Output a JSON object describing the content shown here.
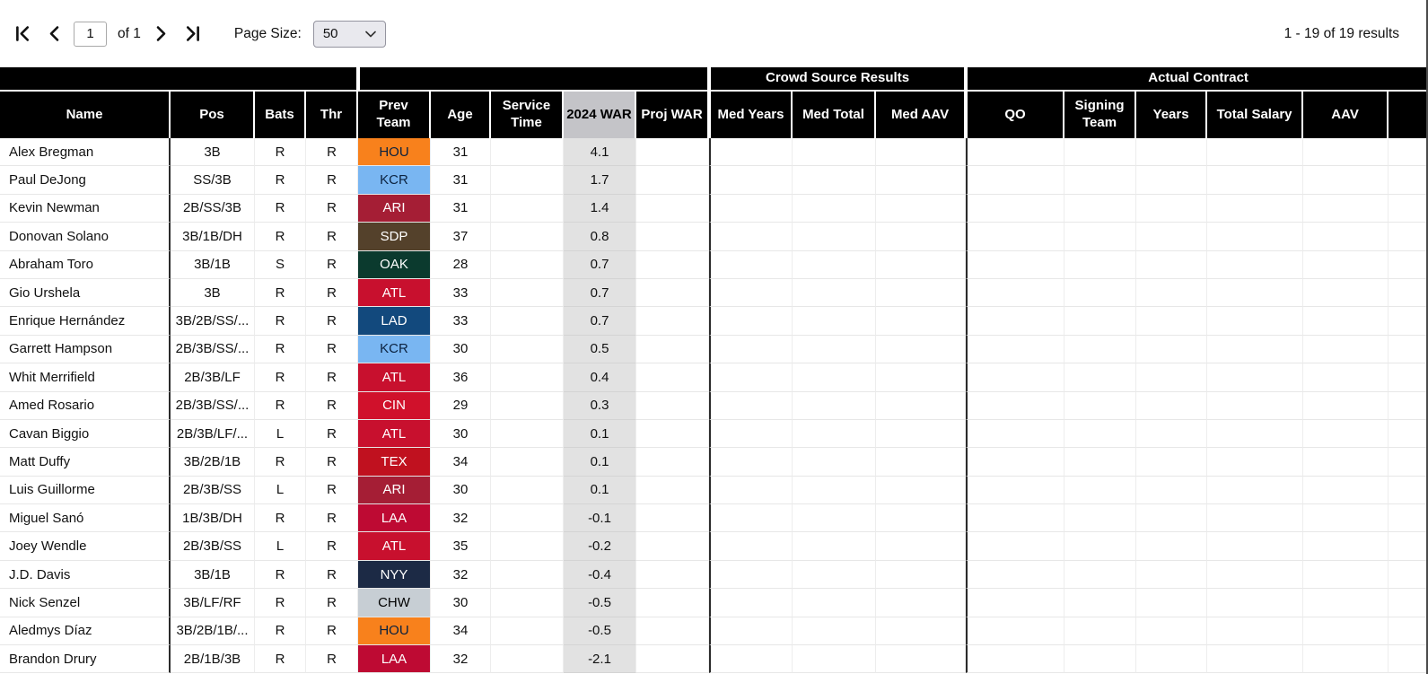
{
  "toolbar": {
    "page_value": "1",
    "page_of_label": "of 1",
    "page_size_label": "Page Size:",
    "page_size_value": "50",
    "results_text": "1 - 19 of 19 results"
  },
  "colors": {
    "header_bg": "#000000",
    "header_text": "#ffffff",
    "sorted_header_bg": "#c4c4c8",
    "sorted_column_bg": "#e2e2e2",
    "teams": {
      "HOU": {
        "bg": "#F8811C",
        "text": "#09203F"
      },
      "KCR": {
        "bg": "#79B6F2",
        "text": "#0C2340"
      },
      "ARI": {
        "bg": "#A51E35",
        "text": "#FFFFFF"
      },
      "SDP": {
        "bg": "#54412B",
        "text": "#FFFFFF"
      },
      "OAK": {
        "bg": "#0B3A2E",
        "text": "#FFFFFF"
      },
      "ATL": {
        "bg": "#C8102E",
        "text": "#FFFFFF"
      },
      "LAD": {
        "bg": "#12497D",
        "text": "#FFFFFF"
      },
      "CIN": {
        "bg": "#D0112B",
        "text": "#FFFFFF"
      },
      "TEX": {
        "bg": "#C0111F",
        "text": "#FFFFFF"
      },
      "LAA": {
        "bg": "#BE0A33",
        "text": "#FFFFFF"
      },
      "NYY": {
        "bg": "#1C2A45",
        "text": "#FFFFFF"
      },
      "CHW": {
        "bg": "#C7CED4",
        "text": "#000000"
      }
    }
  },
  "table": {
    "groups": [
      {
        "label": "",
        "span": 4
      },
      {
        "label": "",
        "span": 5
      },
      {
        "label": "Crowd Source Results",
        "span": 3
      },
      {
        "label": "Actual Contract",
        "span": 6
      }
    ],
    "columns": [
      "Name",
      "Pos",
      "Bats",
      "Thr",
      "Prev Team",
      "Age",
      "Service Time",
      "2024 WAR",
      "Proj WAR",
      "Med Years",
      "Med Total",
      "Med AAV",
      "QO",
      "Signing Team",
      "Years",
      "Total Salary",
      "AAV",
      ""
    ],
    "sorted_column": "2024 WAR",
    "rows": [
      {
        "name": "Alex Bregman",
        "pos": "3B",
        "bats": "R",
        "thr": "R",
        "prev_team": "HOU",
        "age": "31",
        "service_time": "",
        "war_2024": "4.1",
        "proj_war": "",
        "med_years": "",
        "med_total": "",
        "med_aav": "",
        "qo": "",
        "signing_team": "",
        "years": "",
        "total_salary": "",
        "aav": "",
        "blank": ""
      },
      {
        "name": "Paul DeJong",
        "pos": "SS/3B",
        "bats": "R",
        "thr": "R",
        "prev_team": "KCR",
        "age": "31",
        "service_time": "",
        "war_2024": "1.7",
        "proj_war": "",
        "med_years": "",
        "med_total": "",
        "med_aav": "",
        "qo": "",
        "signing_team": "",
        "years": "",
        "total_salary": "",
        "aav": "",
        "blank": ""
      },
      {
        "name": "Kevin Newman",
        "pos": "2B/SS/3B",
        "bats": "R",
        "thr": "R",
        "prev_team": "ARI",
        "age": "31",
        "service_time": "",
        "war_2024": "1.4",
        "proj_war": "",
        "med_years": "",
        "med_total": "",
        "med_aav": "",
        "qo": "",
        "signing_team": "",
        "years": "",
        "total_salary": "",
        "aav": "",
        "blank": ""
      },
      {
        "name": "Donovan Solano",
        "pos": "3B/1B/DH",
        "bats": "R",
        "thr": "R",
        "prev_team": "SDP",
        "age": "37",
        "service_time": "",
        "war_2024": "0.8",
        "proj_war": "",
        "med_years": "",
        "med_total": "",
        "med_aav": "",
        "qo": "",
        "signing_team": "",
        "years": "",
        "total_salary": "",
        "aav": "",
        "blank": ""
      },
      {
        "name": "Abraham Toro",
        "pos": "3B/1B",
        "bats": "S",
        "thr": "R",
        "prev_team": "OAK",
        "age": "28",
        "service_time": "",
        "war_2024": "0.7",
        "proj_war": "",
        "med_years": "",
        "med_total": "",
        "med_aav": "",
        "qo": "",
        "signing_team": "",
        "years": "",
        "total_salary": "",
        "aav": "",
        "blank": ""
      },
      {
        "name": "Gio Urshela",
        "pos": "3B",
        "bats": "R",
        "thr": "R",
        "prev_team": "ATL",
        "age": "33",
        "service_time": "",
        "war_2024": "0.7",
        "proj_war": "",
        "med_years": "",
        "med_total": "",
        "med_aav": "",
        "qo": "",
        "signing_team": "",
        "years": "",
        "total_salary": "",
        "aav": "",
        "blank": ""
      },
      {
        "name": "Enrique Hernández",
        "pos": "3B/2B/SS/...",
        "bats": "R",
        "thr": "R",
        "prev_team": "LAD",
        "age": "33",
        "service_time": "",
        "war_2024": "0.7",
        "proj_war": "",
        "med_years": "",
        "med_total": "",
        "med_aav": "",
        "qo": "",
        "signing_team": "",
        "years": "",
        "total_salary": "",
        "aav": "",
        "blank": ""
      },
      {
        "name": "Garrett Hampson",
        "pos": "2B/3B/SS/...",
        "bats": "R",
        "thr": "R",
        "prev_team": "KCR",
        "age": "30",
        "service_time": "",
        "war_2024": "0.5",
        "proj_war": "",
        "med_years": "",
        "med_total": "",
        "med_aav": "",
        "qo": "",
        "signing_team": "",
        "years": "",
        "total_salary": "",
        "aav": "",
        "blank": ""
      },
      {
        "name": "Whit Merrifield",
        "pos": "2B/3B/LF",
        "bats": "R",
        "thr": "R",
        "prev_team": "ATL",
        "age": "36",
        "service_time": "",
        "war_2024": "0.4",
        "proj_war": "",
        "med_years": "",
        "med_total": "",
        "med_aav": "",
        "qo": "",
        "signing_team": "",
        "years": "",
        "total_salary": "",
        "aav": "",
        "blank": ""
      },
      {
        "name": "Amed Rosario",
        "pos": "2B/3B/SS/...",
        "bats": "R",
        "thr": "R",
        "prev_team": "CIN",
        "age": "29",
        "service_time": "",
        "war_2024": "0.3",
        "proj_war": "",
        "med_years": "",
        "med_total": "",
        "med_aav": "",
        "qo": "",
        "signing_team": "",
        "years": "",
        "total_salary": "",
        "aav": "",
        "blank": ""
      },
      {
        "name": "Cavan Biggio",
        "pos": "2B/3B/LF/...",
        "bats": "L",
        "thr": "R",
        "prev_team": "ATL",
        "age": "30",
        "service_time": "",
        "war_2024": "0.1",
        "proj_war": "",
        "med_years": "",
        "med_total": "",
        "med_aav": "",
        "qo": "",
        "signing_team": "",
        "years": "",
        "total_salary": "",
        "aav": "",
        "blank": ""
      },
      {
        "name": "Matt Duffy",
        "pos": "3B/2B/1B",
        "bats": "R",
        "thr": "R",
        "prev_team": "TEX",
        "age": "34",
        "service_time": "",
        "war_2024": "0.1",
        "proj_war": "",
        "med_years": "",
        "med_total": "",
        "med_aav": "",
        "qo": "",
        "signing_team": "",
        "years": "",
        "total_salary": "",
        "aav": "",
        "blank": ""
      },
      {
        "name": "Luis Guillorme",
        "pos": "2B/3B/SS",
        "bats": "L",
        "thr": "R",
        "prev_team": "ARI",
        "age": "30",
        "service_time": "",
        "war_2024": "0.1",
        "proj_war": "",
        "med_years": "",
        "med_total": "",
        "med_aav": "",
        "qo": "",
        "signing_team": "",
        "years": "",
        "total_salary": "",
        "aav": "",
        "blank": ""
      },
      {
        "name": "Miguel Sanó",
        "pos": "1B/3B/DH",
        "bats": "R",
        "thr": "R",
        "prev_team": "LAA",
        "age": "32",
        "service_time": "",
        "war_2024": "-0.1",
        "proj_war": "",
        "med_years": "",
        "med_total": "",
        "med_aav": "",
        "qo": "",
        "signing_team": "",
        "years": "",
        "total_salary": "",
        "aav": "",
        "blank": ""
      },
      {
        "name": "Joey Wendle",
        "pos": "2B/3B/SS",
        "bats": "L",
        "thr": "R",
        "prev_team": "ATL",
        "age": "35",
        "service_time": "",
        "war_2024": "-0.2",
        "proj_war": "",
        "med_years": "",
        "med_total": "",
        "med_aav": "",
        "qo": "",
        "signing_team": "",
        "years": "",
        "total_salary": "",
        "aav": "",
        "blank": ""
      },
      {
        "name": "J.D. Davis",
        "pos": "3B/1B",
        "bats": "R",
        "thr": "R",
        "prev_team": "NYY",
        "age": "32",
        "service_time": "",
        "war_2024": "-0.4",
        "proj_war": "",
        "med_years": "",
        "med_total": "",
        "med_aav": "",
        "qo": "",
        "signing_team": "",
        "years": "",
        "total_salary": "",
        "aav": "",
        "blank": ""
      },
      {
        "name": "Nick Senzel",
        "pos": "3B/LF/RF",
        "bats": "R",
        "thr": "R",
        "prev_team": "CHW",
        "age": "30",
        "service_time": "",
        "war_2024": "-0.5",
        "proj_war": "",
        "med_years": "",
        "med_total": "",
        "med_aav": "",
        "qo": "",
        "signing_team": "",
        "years": "",
        "total_salary": "",
        "aav": "",
        "blank": ""
      },
      {
        "name": "Aledmys Díaz",
        "pos": "3B/2B/1B/...",
        "bats": "R",
        "thr": "R",
        "prev_team": "HOU",
        "age": "34",
        "service_time": "",
        "war_2024": "-0.5",
        "proj_war": "",
        "med_years": "",
        "med_total": "",
        "med_aav": "",
        "qo": "",
        "signing_team": "",
        "years": "",
        "total_salary": "",
        "aav": "",
        "blank": ""
      },
      {
        "name": "Brandon Drury",
        "pos": "2B/1B/3B",
        "bats": "R",
        "thr": "R",
        "prev_team": "LAA",
        "age": "32",
        "service_time": "",
        "war_2024": "-2.1",
        "proj_war": "",
        "med_years": "",
        "med_total": "",
        "med_aav": "",
        "qo": "",
        "signing_team": "",
        "years": "",
        "total_salary": "",
        "aav": "",
        "blank": ""
      }
    ]
  }
}
